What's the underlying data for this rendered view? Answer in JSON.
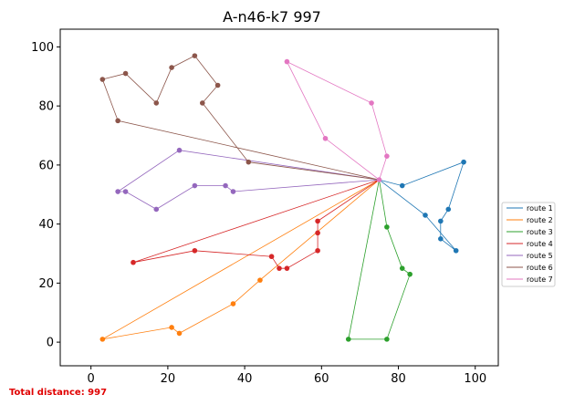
{
  "chart_data": {
    "type": "line",
    "title": "A-n46-k7 997",
    "xlabel": "",
    "ylabel": "",
    "xlim": [
      -8,
      106
    ],
    "ylim": [
      -8,
      106
    ],
    "xticks": [
      0,
      20,
      40,
      60,
      80,
      100
    ],
    "yticks": [
      0,
      20,
      40,
      60,
      80,
      100
    ],
    "grid": false,
    "legend_placement": "center-right outside",
    "depot": [
      75,
      55
    ],
    "series": [
      {
        "name": "route 1",
        "color": "#1f77b4",
        "points": [
          [
            75,
            55
          ],
          [
            81,
            53
          ],
          [
            97,
            61
          ],
          [
            93,
            45
          ],
          [
            91,
            41
          ],
          [
            91,
            35
          ],
          [
            95,
            31
          ],
          [
            87,
            43
          ],
          [
            75,
            55
          ]
        ]
      },
      {
        "name": "route 2",
        "color": "#ff7f0e",
        "points": [
          [
            75,
            55
          ],
          [
            44,
            21
          ],
          [
            37,
            13
          ],
          [
            23,
            3
          ],
          [
            21,
            5
          ],
          [
            3,
            1
          ],
          [
            75,
            55
          ]
        ]
      },
      {
        "name": "route 3",
        "color": "#2ca02c",
        "points": [
          [
            75,
            55
          ],
          [
            77,
            39
          ],
          [
            81,
            25
          ],
          [
            83,
            23
          ],
          [
            77,
            1
          ],
          [
            67,
            1
          ],
          [
            75,
            55
          ]
        ]
      },
      {
        "name": "route 4",
        "color": "#d62728",
        "points": [
          [
            75,
            55
          ],
          [
            59,
            41
          ],
          [
            59,
            37
          ],
          [
            59,
            31
          ],
          [
            51,
            25
          ],
          [
            49,
            25
          ],
          [
            47,
            29
          ],
          [
            27,
            31
          ],
          [
            11,
            27
          ],
          [
            75,
            55
          ]
        ]
      },
      {
        "name": "route 5",
        "color": "#9467bd",
        "points": [
          [
            75,
            55
          ],
          [
            37,
            51
          ],
          [
            35,
            53
          ],
          [
            27,
            53
          ],
          [
            17,
            45
          ],
          [
            9,
            51
          ],
          [
            7,
            51
          ],
          [
            23,
            65
          ],
          [
            75,
            55
          ]
        ]
      },
      {
        "name": "route 6",
        "color": "#8c564b",
        "points": [
          [
            75,
            55
          ],
          [
            41,
            61
          ],
          [
            29,
            81
          ],
          [
            33,
            87
          ],
          [
            27,
            97
          ],
          [
            21,
            93
          ],
          [
            17,
            81
          ],
          [
            9,
            91
          ],
          [
            3,
            89
          ],
          [
            7,
            75
          ],
          [
            75,
            55
          ]
        ]
      },
      {
        "name": "route 7",
        "color": "#e377c2",
        "points": [
          [
            75,
            55
          ],
          [
            77,
            63
          ],
          [
            73,
            81
          ],
          [
            51,
            95
          ],
          [
            61,
            69
          ],
          [
            75,
            55
          ]
        ]
      }
    ],
    "footer": "Total distance: 997"
  }
}
